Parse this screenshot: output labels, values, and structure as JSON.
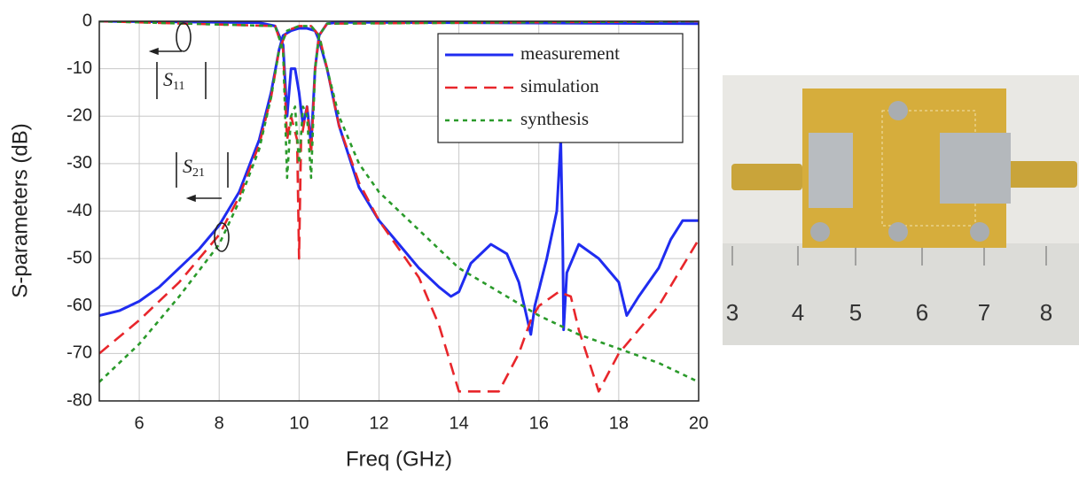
{
  "chart_data": {
    "type": "line",
    "xlabel": "Freq (GHz)",
    "ylabel": "S-parameters (dB)",
    "xlim": [
      5,
      20
    ],
    "xticks": [
      6,
      8,
      10,
      12,
      14,
      16,
      18,
      20
    ],
    "ylim": [
      -80,
      0
    ],
    "yticks": [
      -80,
      -70,
      -60,
      -50,
      -40,
      -30,
      -20,
      -10,
      0
    ],
    "grid": true,
    "legend": "upper right",
    "annotations": [
      {
        "text": "S",
        "sub": "11"
      },
      {
        "text": "S",
        "sub": "21"
      }
    ],
    "series": [
      {
        "name": "measurement",
        "color": "#1f2cf0",
        "style": "solid",
        "x": [
          5,
          5.5,
          6,
          6.5,
          7,
          7.5,
          8,
          8.5,
          9,
          9.3,
          9.5,
          9.6,
          9.8,
          10,
          10.2,
          10.4,
          10.5,
          10.7,
          11,
          11.5,
          12,
          12.5,
          13,
          13.5,
          13.8,
          14,
          14.3,
          14.8,
          15.2,
          15.5,
          15.8,
          15.9,
          16.2,
          16.45,
          16.55,
          16.6,
          16.62,
          16.7,
          17,
          17.5,
          18,
          18.2,
          18.5,
          19,
          19.3,
          19.6,
          20
        ],
        "values": [
          -62,
          -61,
          -59,
          -56,
          -52,
          -48,
          -43,
          -36,
          -25,
          -15,
          -6,
          -3,
          -2,
          -1.5,
          -1.5,
          -2,
          -4,
          -10,
          -22,
          -35,
          -42,
          -47,
          -52,
          -56,
          -58,
          -57,
          -51,
          -47,
          -49,
          -55,
          -66,
          -60,
          -50,
          -40,
          -25,
          -48,
          -65,
          -53,
          -47,
          -50,
          -55,
          -62,
          -58,
          -52,
          -46,
          -42,
          -42
        ]
      },
      {
        "color": "#1f2cf0",
        "style": "solid",
        "x": [
          5,
          9,
          9.4,
          9.6,
          9.7,
          9.8,
          9.9,
          10,
          10.1,
          10.2,
          10.3,
          10.4,
          10.5,
          10.7,
          11,
          20
        ],
        "values": [
          0,
          -0.3,
          -1,
          -5,
          -20,
          -10,
          -10,
          -15,
          -22,
          -18,
          -26,
          -10,
          -3,
          -0.5,
          -0.2,
          -0.5
        ]
      },
      {
        "name": "simulation",
        "color": "#e8262b",
        "style": "dashed",
        "x": [
          5,
          6,
          7,
          8,
          8.5,
          9,
          9.3,
          9.5,
          9.7,
          10,
          10.3,
          10.5,
          10.7,
          11,
          11.5,
          12,
          12.5,
          13,
          13.5,
          14,
          15,
          15.5,
          15.8,
          16,
          16.5,
          16.8,
          17,
          17.5,
          18,
          19,
          20
        ],
        "values": [
          -70,
          -63,
          -55,
          -45,
          -37,
          -26,
          -16,
          -6,
          -2,
          -1,
          -1,
          -3,
          -10,
          -22,
          -34,
          -42,
          -48,
          -54,
          -64,
          -78,
          -78,
          -70,
          -63,
          -60,
          -57,
          -58,
          -65,
          -78,
          -70,
          -60,
          -46
        ]
      },
      {
        "color": "#e8262b",
        "style": "dashed",
        "x": [
          5,
          9.4,
          9.6,
          9.7,
          9.8,
          9.95,
          10,
          10.05,
          10.2,
          10.3,
          10.4,
          10.5,
          10.7,
          20
        ],
        "values": [
          0,
          -1,
          -6,
          -25,
          -20,
          -25,
          -50,
          -25,
          -18,
          -28,
          -10,
          -3,
          -0.5,
          0
        ]
      },
      {
        "name": "synthesis",
        "color": "#2a9a2a",
        "style": "dotted",
        "x": [
          5,
          6,
          7,
          8,
          8.5,
          9,
          9.3,
          9.5,
          9.7,
          10,
          10.3,
          10.5,
          10.7,
          11,
          11.5,
          12,
          13,
          14,
          15,
          16,
          17,
          18,
          19,
          20
        ],
        "values": [
          -76,
          -68,
          -58,
          -47,
          -38,
          -27,
          -16,
          -6,
          -2,
          -1,
          -1,
          -3,
          -10,
          -20,
          -30,
          -36,
          -44,
          -52,
          -57,
          -62,
          -66,
          -69,
          -72,
          -76
        ]
      },
      {
        "color": "#2a9a2a",
        "style": "dotted",
        "x": [
          5,
          9.4,
          9.6,
          9.7,
          9.8,
          9.9,
          10,
          10.1,
          10.2,
          10.3,
          10.4,
          10.5,
          10.7,
          20
        ],
        "values": [
          0,
          -1,
          -6,
          -33,
          -20,
          -18,
          -30,
          -18,
          -20,
          -33,
          -10,
          -3,
          -0.5,
          0
        ]
      }
    ]
  },
  "photo": {
    "ruler_labels": [
      "3",
      "4",
      "5",
      "6",
      "7",
      "8"
    ]
  }
}
